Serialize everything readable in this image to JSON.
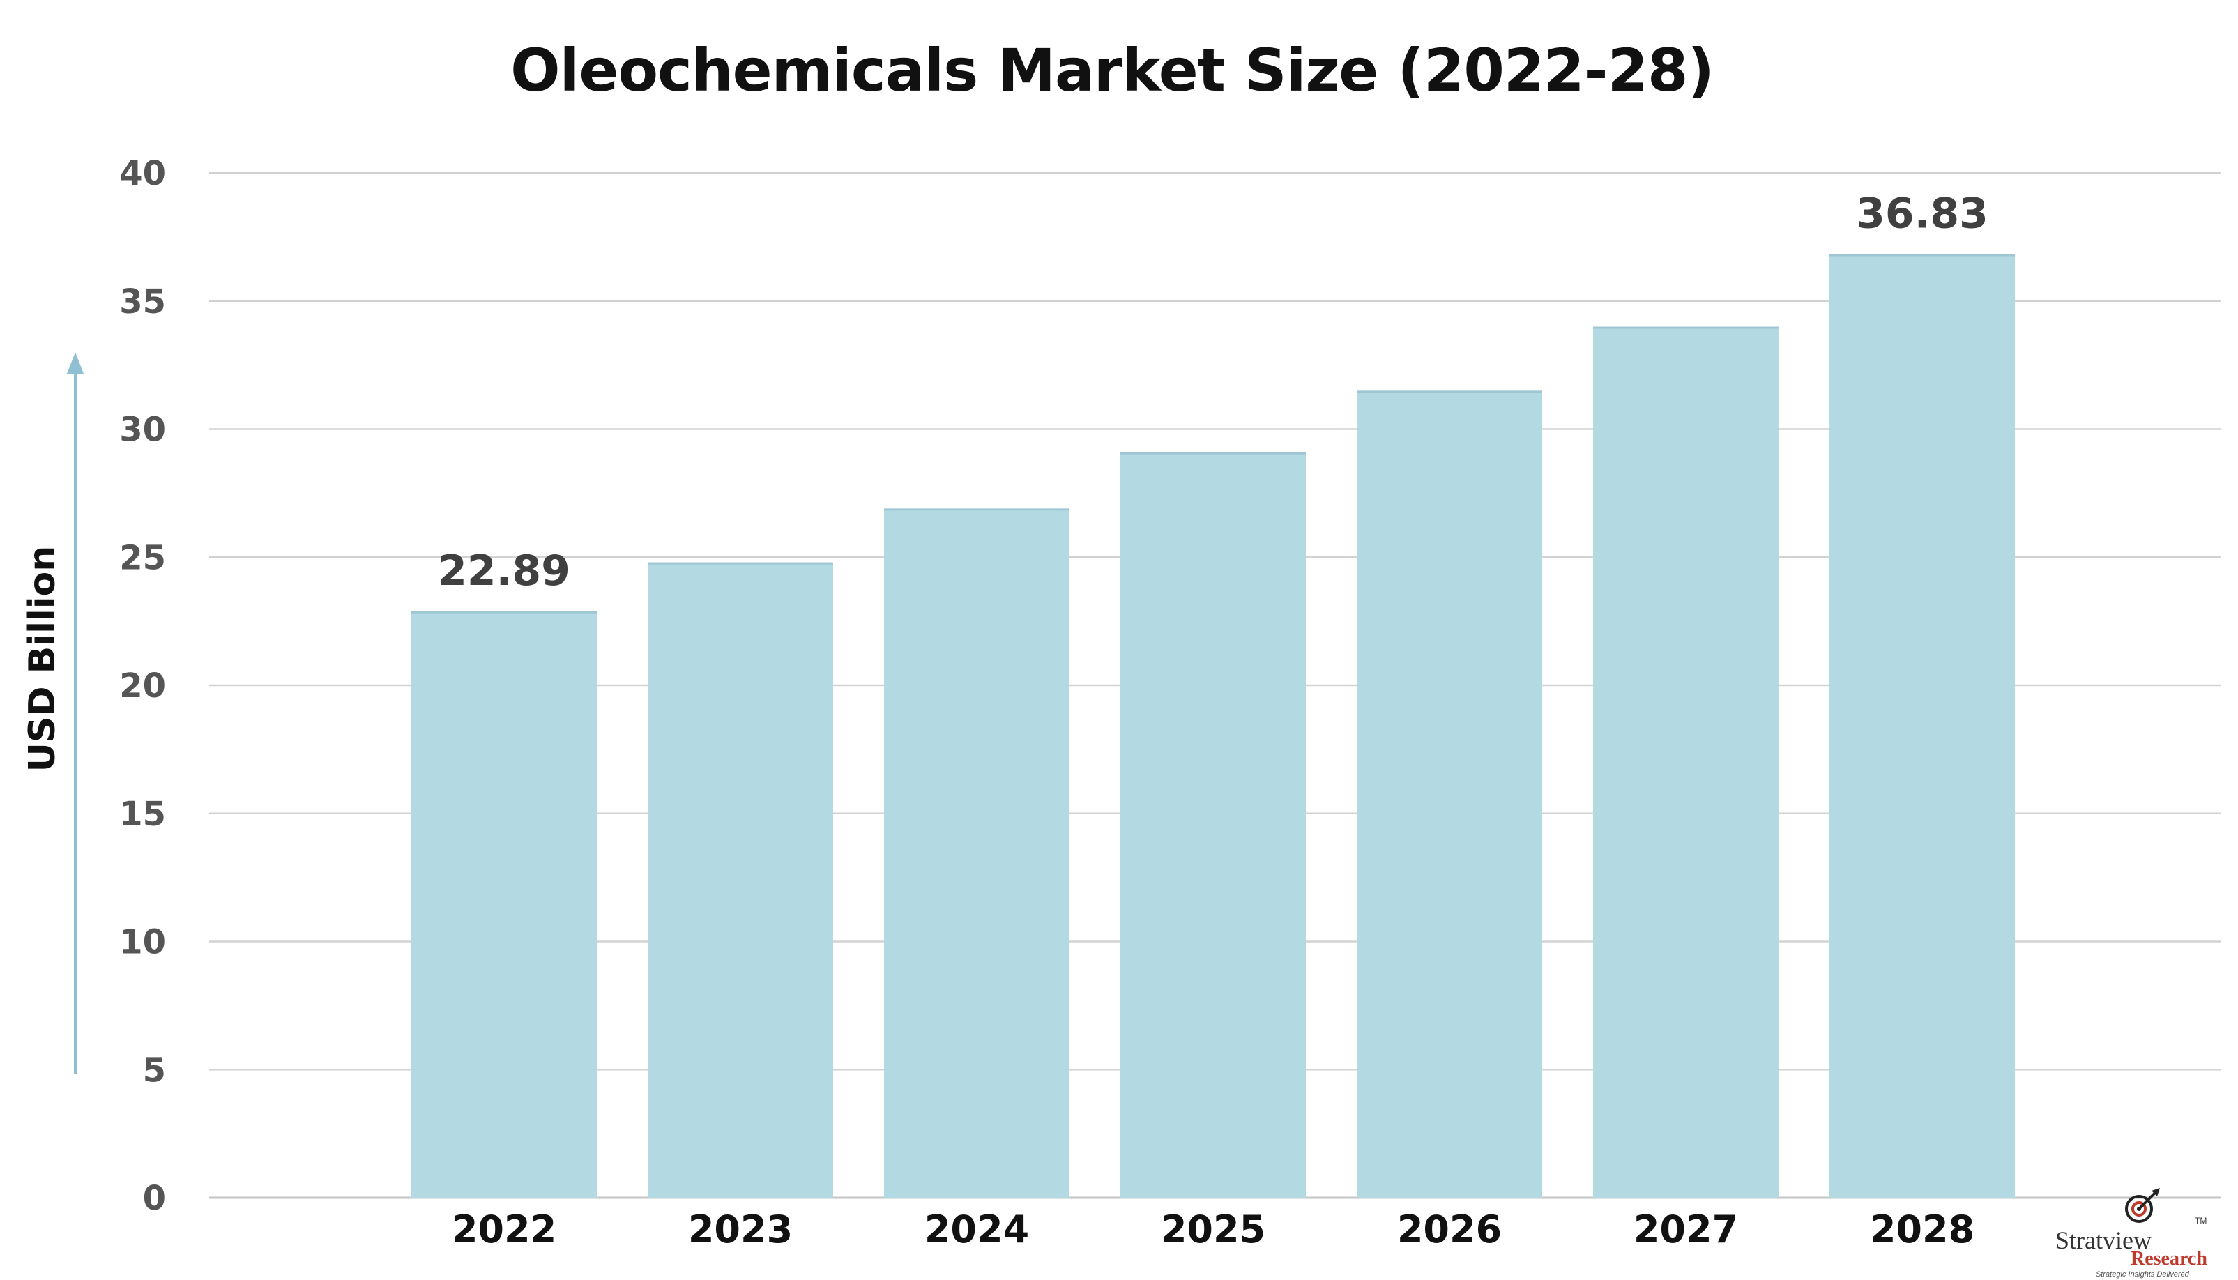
{
  "chart_data": {
    "type": "bar",
    "title": "Oleochemicals Market Size (2022-28)",
    "ylabel": "USD Billion",
    "xlabel": "",
    "categories": [
      "2022",
      "2023",
      "2024",
      "2025",
      "2026",
      "2027",
      "2028"
    ],
    "values": [
      22.89,
      24.8,
      26.9,
      29.1,
      31.5,
      34.0,
      36.83
    ],
    "data_labels": [
      "22.89",
      "",
      "",
      "",
      "",
      "",
      "36.83"
    ],
    "ylim": [
      0,
      40
    ],
    "yticks": [
      0,
      5,
      10,
      15,
      20,
      25,
      30,
      35,
      40
    ],
    "grid": "horizontal",
    "bar_color": "#b3dae2",
    "axis_arrow_color": "#8fbfd3"
  },
  "logo": {
    "name": "Stratview",
    "tm": "TM",
    "subname": "Research",
    "tagline": "Strategic Insights Delivered"
  }
}
